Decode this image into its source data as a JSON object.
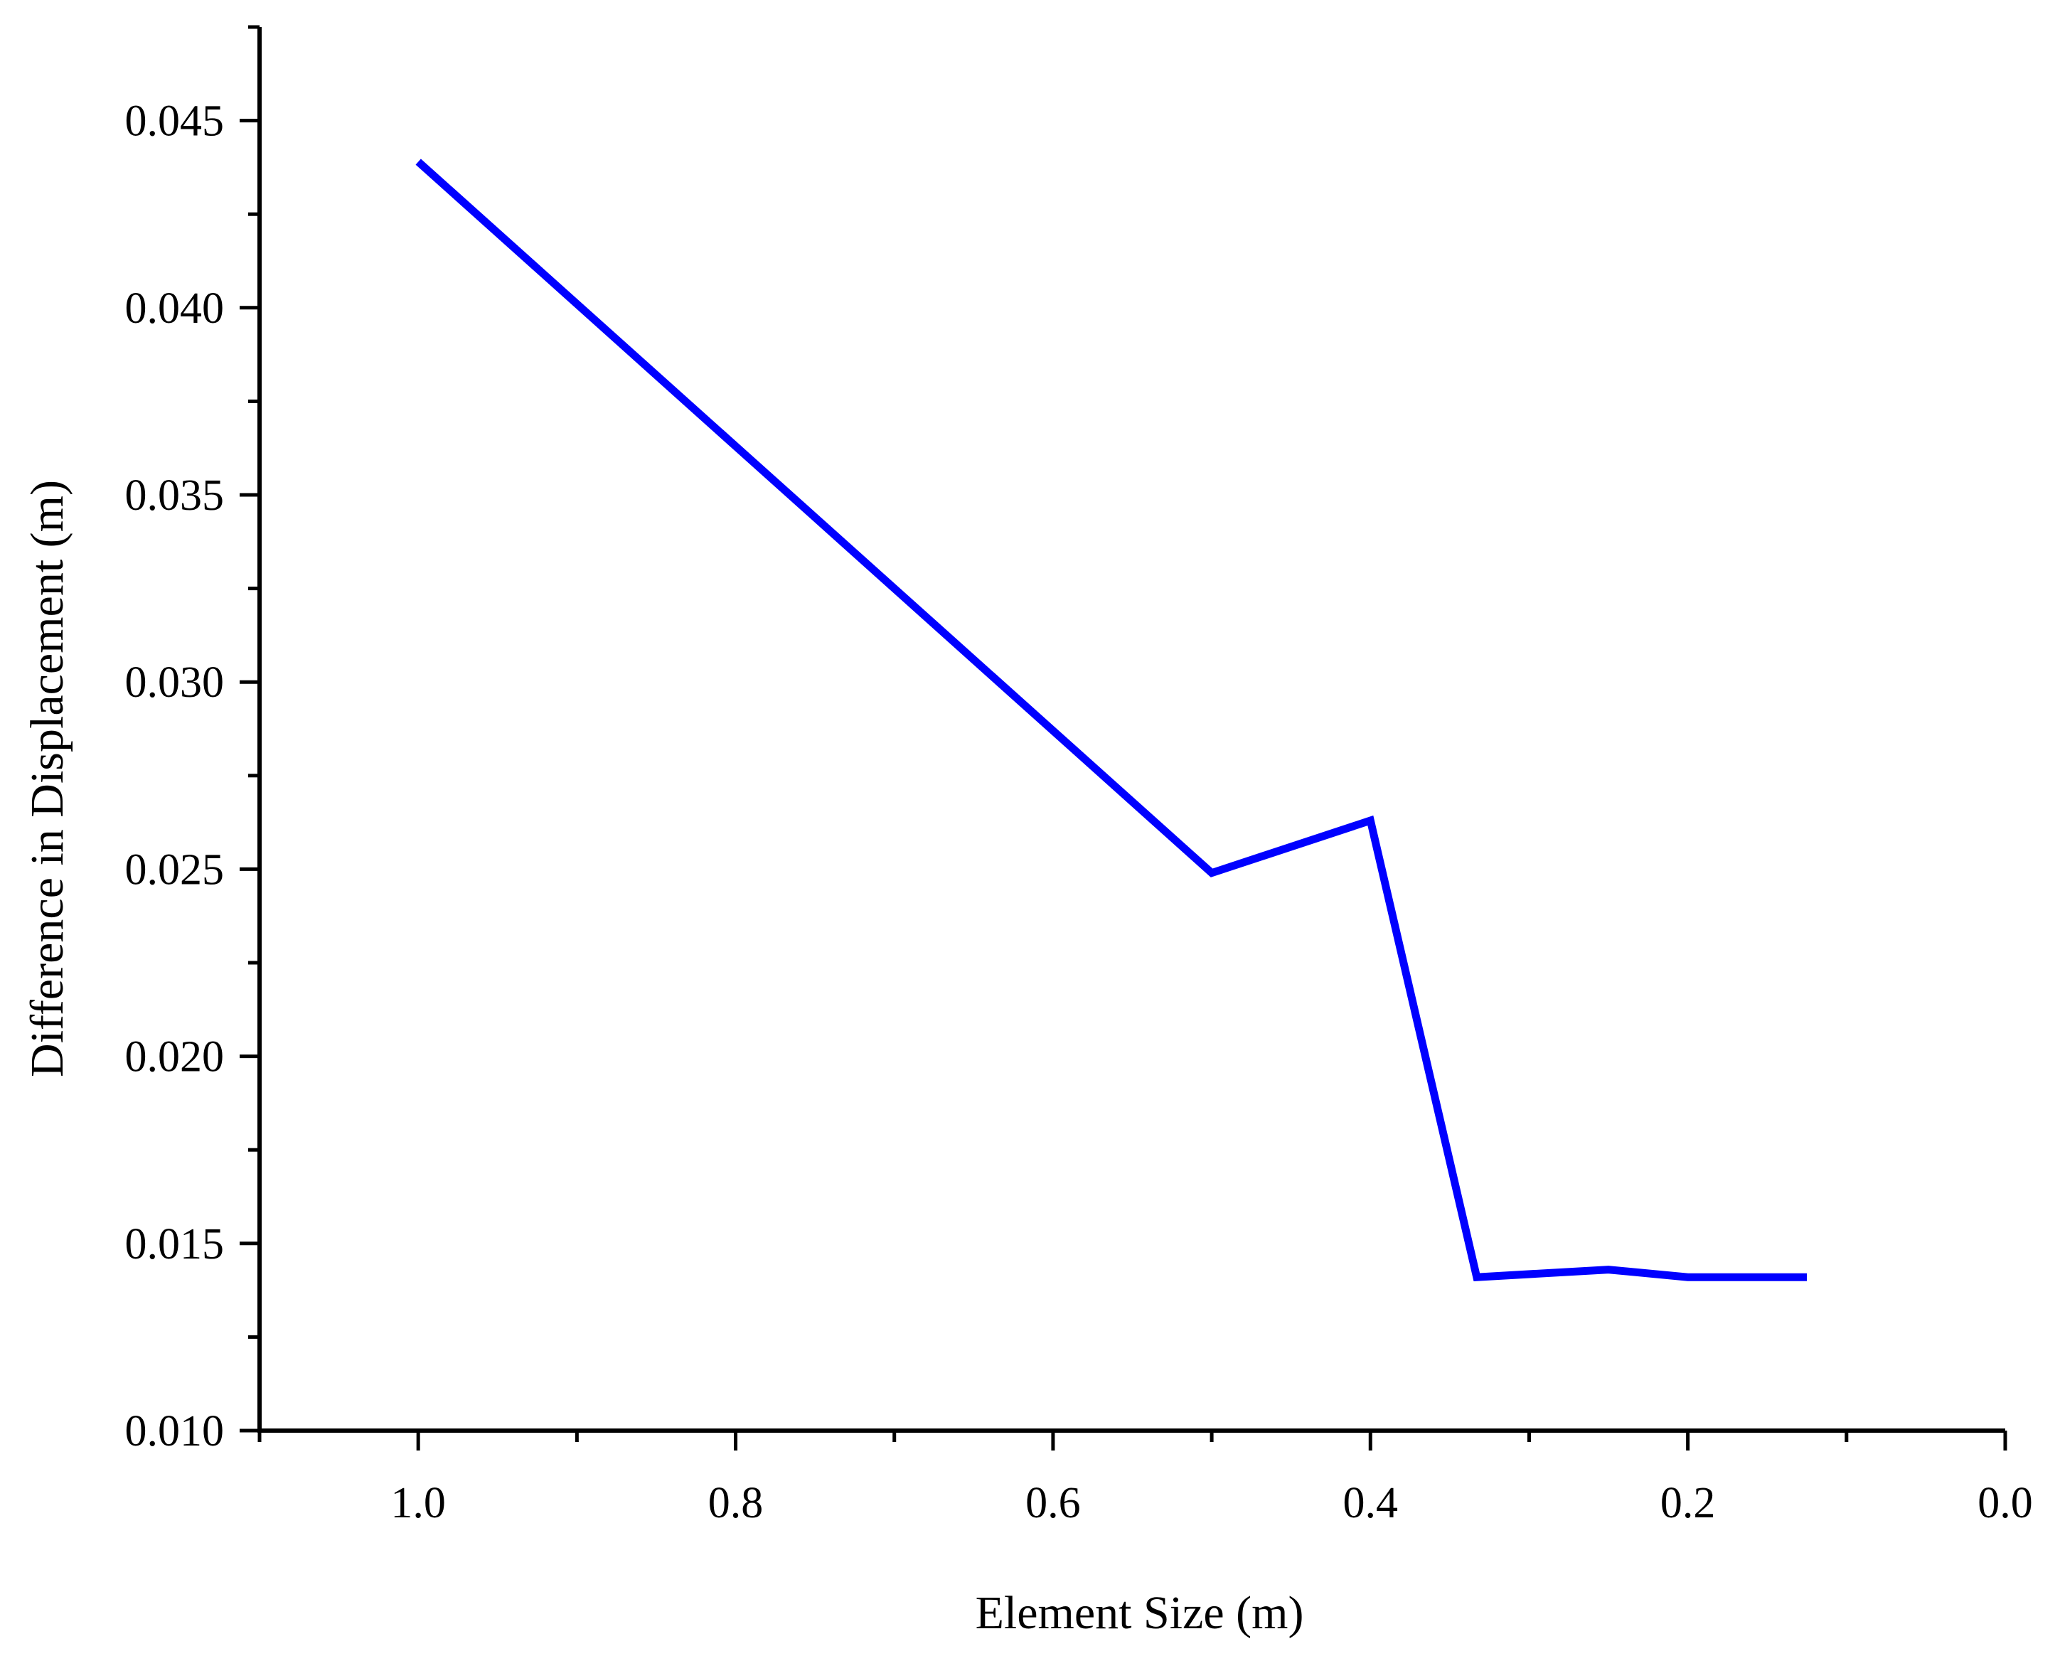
{
  "chart_data": {
    "type": "line",
    "title": "",
    "xlabel": "Element Size (m)",
    "ylabel": "Difference in Displacement (m)",
    "xlim": [
      1.1,
      0.0
    ],
    "ylim": [
      0.01,
      0.0475
    ],
    "x_reversed": true,
    "x_ticks": [
      "1.0",
      "0.8",
      "0.6",
      "0.4",
      "0.2",
      "0.0"
    ],
    "y_ticks": [
      "0.010",
      "0.015",
      "0.020",
      "0.025",
      "0.030",
      "0.035",
      "0.040",
      "0.045"
    ],
    "grid": false,
    "legend": "none",
    "series": [
      {
        "color": "#0000ff",
        "x": [
          1.0,
          0.5,
          0.4,
          0.333,
          0.25,
          0.2,
          0.125
        ],
        "y": [
          0.0439,
          0.0249,
          0.0263,
          0.0141,
          0.0143,
          0.0141,
          0.0141
        ]
      }
    ]
  }
}
